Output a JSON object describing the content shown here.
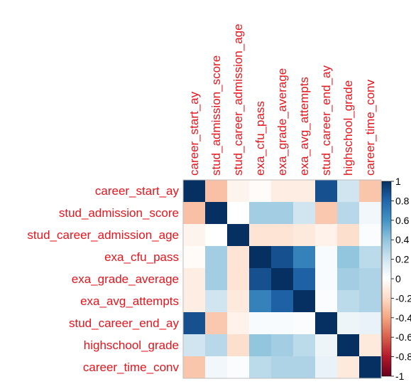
{
  "chart_data": {
    "type": "heatmap",
    "title": "",
    "variables": [
      "career_start_ay",
      "stud_admission_score",
      "stud_career_admission_age",
      "exa_cfu_pass",
      "exa_grade_average",
      "exa_avg_attempts",
      "stud_career_end_ay",
      "highschool_grade",
      "career_time_conv"
    ],
    "matrix": [
      [
        1.0,
        -0.3,
        -0.06,
        -0.02,
        -0.1,
        -0.1,
        0.88,
        0.2,
        -0.28
      ],
      [
        -0.3,
        1.0,
        0.0,
        0.35,
        0.35,
        0.2,
        -0.27,
        0.28,
        0.06
      ],
      [
        -0.06,
        0.0,
        1.0,
        -0.15,
        -0.15,
        -0.12,
        -0.07,
        -0.18,
        0.02
      ],
      [
        -0.02,
        0.35,
        -0.15,
        1.0,
        0.88,
        0.68,
        0.03,
        0.4,
        0.27
      ],
      [
        -0.1,
        0.35,
        -0.15,
        0.88,
        1.0,
        0.82,
        0.03,
        0.35,
        0.31
      ],
      [
        -0.1,
        0.2,
        -0.12,
        0.68,
        0.82,
        1.0,
        0.02,
        0.27,
        0.31
      ],
      [
        0.88,
        -0.27,
        -0.07,
        0.03,
        0.03,
        0.02,
        1.0,
        0.08,
        0.1
      ],
      [
        0.2,
        0.28,
        -0.18,
        0.4,
        0.35,
        0.27,
        0.08,
        1.0,
        -0.12
      ],
      [
        -0.28,
        0.06,
        0.02,
        0.27,
        0.31,
        0.31,
        0.1,
        -0.12,
        1.0
      ]
    ],
    "color_range": [
      -1,
      1
    ],
    "colorbar_ticks": [
      "1",
      "0.8",
      "0.6",
      "0.4",
      "0.2",
      "0",
      "-0.2",
      "-0.4",
      "-0.6",
      "-0.8",
      "-1"
    ],
    "colorbar_placement": "right",
    "label_color": "#e8141c",
    "palette": [
      "#67001f",
      "#b2182b",
      "#d6604d",
      "#f4a582",
      "#fddbc7",
      "#ffffff",
      "#d1e5f0",
      "#92c5de",
      "#4393c3",
      "#2166ac",
      "#053061"
    ]
  }
}
